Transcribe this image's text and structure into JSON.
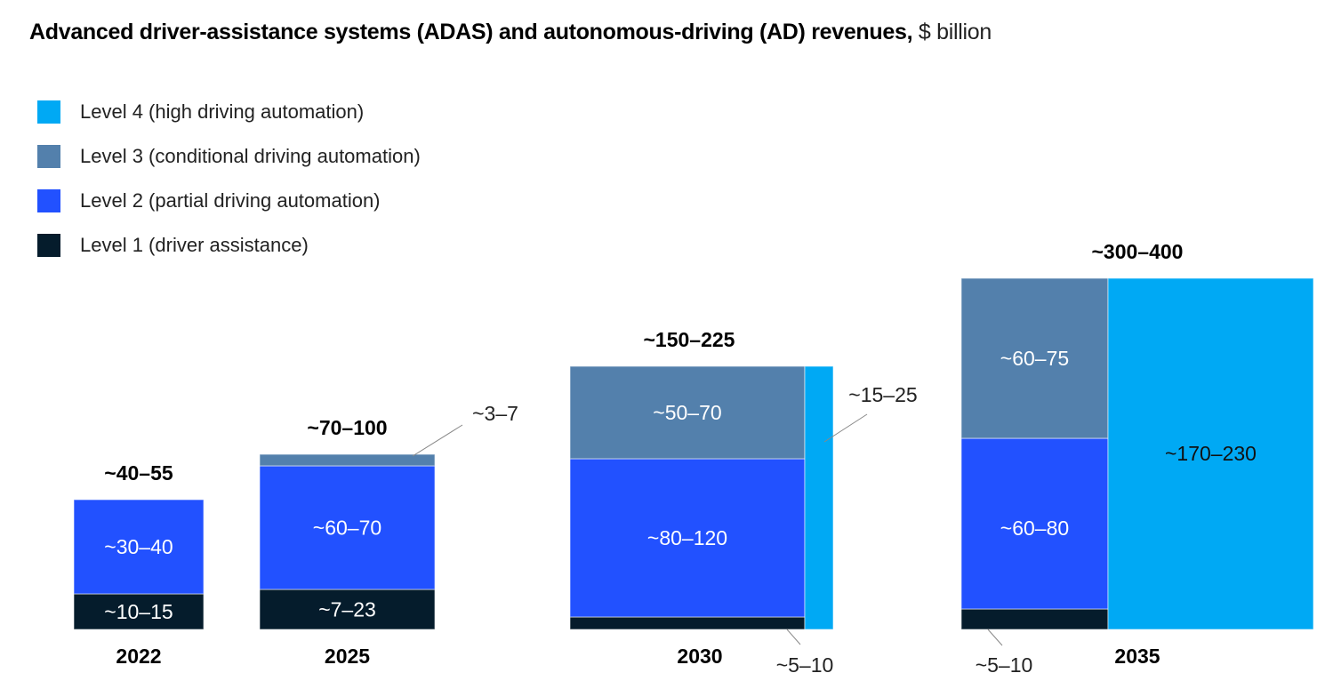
{
  "chart_data": {
    "type": "bar",
    "subtype": "stacked-mosaic",
    "title": "Advanced driver-assistance systems (ADAS) and autonomous-driving (AD) revenues,",
    "unit": "$ billion",
    "xlabel": "",
    "ylabel": "",
    "grid": false,
    "legend_position": "top-left",
    "categories": [
      "2022",
      "2025",
      "2030",
      "2035"
    ],
    "series": [
      {
        "key": "l4",
        "name": "Level 4 (high driving automation)",
        "color": "#00A9F4",
        "label_color": "#111111"
      },
      {
        "key": "l3",
        "name": "Level 3 (conditional driving automation)",
        "color": "#5380AC",
        "label_color": "#FFFFFF"
      },
      {
        "key": "l2",
        "name": "Level 2 (partial driving automation)",
        "color": "#2251FF",
        "label_color": "#FFFFFF"
      },
      {
        "key": "l1",
        "name": "Level 1 (driver assistance)",
        "color": "#051C2C",
        "label_color": "#FFFFFF"
      }
    ],
    "bars": [
      {
        "year": "2022",
        "total_label": "~40–55",
        "total_range": [
          40,
          55
        ],
        "segments": [
          {
            "series": "l1",
            "label": "~10–15",
            "range": [
              10,
              15
            ],
            "label_style": "inside"
          },
          {
            "series": "l2",
            "label": "~30–40",
            "range": [
              30,
              40
            ],
            "label_style": "inside"
          }
        ]
      },
      {
        "year": "2025",
        "total_label": "~70–100",
        "total_range": [
          70,
          100
        ],
        "segments": [
          {
            "series": "l1",
            "label": "~7–23",
            "range": [
              7,
              23
            ],
            "label_style": "inside"
          },
          {
            "series": "l2",
            "label": "~60–70",
            "range": [
              60,
              70
            ],
            "label_style": "inside"
          },
          {
            "series": "l3",
            "label": "~3–7",
            "range": [
              3,
              7
            ],
            "label_style": "callout-top-right"
          }
        ]
      },
      {
        "year": "2030",
        "total_label": "~150–225",
        "total_range": [
          150,
          225
        ],
        "segments": [
          {
            "series": "l1",
            "label": "~5–10",
            "range": [
              5,
              10
            ],
            "label_style": "callout-bottom-right"
          },
          {
            "series": "l2",
            "label": "~80–120",
            "range": [
              80,
              120
            ],
            "label_style": "inside"
          },
          {
            "series": "l3",
            "label": "~50–70",
            "range": [
              50,
              70
            ],
            "label_style": "inside"
          },
          {
            "series": "l4",
            "label": "~15–25",
            "range": [
              15,
              25
            ],
            "label_style": "callout-right",
            "side_column": true
          }
        ]
      },
      {
        "year": "2035",
        "total_label": "~300–400",
        "total_range": [
          300,
          400
        ],
        "segments": [
          {
            "series": "l1",
            "label": "~5–10",
            "range": [
              5,
              10
            ],
            "label_style": "callout-bottom-left"
          },
          {
            "series": "l2",
            "label": "~60–80",
            "range": [
              60,
              80
            ],
            "label_style": "inside"
          },
          {
            "series": "l3",
            "label": "~60–75",
            "range": [
              60,
              75
            ],
            "label_style": "inside"
          },
          {
            "series": "l4",
            "label": "~170–230",
            "range": [
              170,
              230
            ],
            "label_style": "inside",
            "side_column": true
          }
        ]
      }
    ]
  }
}
